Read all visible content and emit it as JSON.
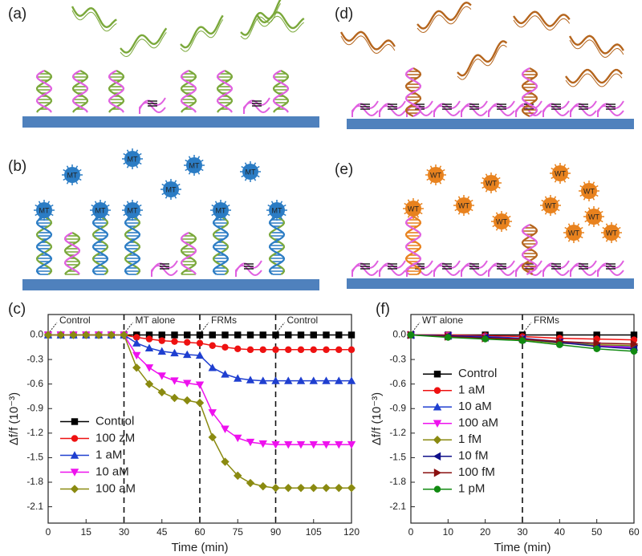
{
  "schematics": [
    {
      "label": "(a)"
    },
    {
      "label": "(b)",
      "particle": "MT"
    },
    {
      "label": "(d)"
    },
    {
      "label": "(e)",
      "particle": "WT"
    }
  ],
  "chart_data": [
    {
      "type": "line",
      "panel_label": "(c)",
      "x_label": "Time (min)",
      "y_label": "Δf/f (10⁻³)",
      "xlim": [
        0,
        120
      ],
      "xticks": [
        0,
        15,
        30,
        45,
        60,
        75,
        90,
        105,
        120
      ],
      "ylim": [
        -2.3,
        0.25
      ],
      "yticks": [
        {
          "value": 0,
          "label": "0.0"
        },
        -0.3,
        -0.6,
        -0.9,
        -1.2,
        -1.5,
        -1.8,
        -2.1
      ],
      "vlines": [
        30,
        60,
        90
      ],
      "legend": "lower left",
      "annotations": [
        {
          "text": "Control",
          "x": 0
        },
        {
          "text": "MT alone",
          "x": 30
        },
        {
          "text": "FRMs",
          "x": 60
        },
        {
          "text": "Control",
          "x": 90
        }
      ],
      "x": [
        0,
        5,
        10,
        15,
        20,
        25,
        30,
        35,
        40,
        45,
        50,
        55,
        60,
        65,
        70,
        75,
        80,
        85,
        90,
        95,
        100,
        105,
        110,
        115,
        120
      ],
      "series": [
        {
          "name": "Control",
          "color": "#000000",
          "marker": "square",
          "values": [
            0,
            0,
            0,
            0,
            0,
            0,
            0,
            0,
            0,
            0,
            0,
            0,
            0,
            0,
            0,
            0,
            0,
            0,
            0,
            0,
            0,
            0,
            0,
            0,
            0
          ]
        },
        {
          "name": "100 zM",
          "color": "#ee1111",
          "marker": "circle",
          "values": [
            0,
            0,
            0,
            0,
            0,
            0,
            0,
            -0.03,
            -0.05,
            -0.07,
            -0.08,
            -0.09,
            -0.1,
            -0.13,
            -0.15,
            -0.17,
            -0.18,
            -0.18,
            -0.18,
            -0.18,
            -0.18,
            -0.18,
            -0.18,
            -0.18,
            -0.18
          ]
        },
        {
          "name": "1 aM",
          "color": "#1f3fd0",
          "marker": "triangle-up",
          "values": [
            0,
            0,
            0,
            0,
            0,
            0,
            0,
            -0.1,
            -0.16,
            -0.2,
            -0.22,
            -0.24,
            -0.25,
            -0.4,
            -0.48,
            -0.53,
            -0.55,
            -0.56,
            -0.56,
            -0.56,
            -0.56,
            -0.56,
            -0.56,
            -0.56,
            -0.56
          ]
        },
        {
          "name": "10 aM",
          "color": "#ee11ee",
          "marker": "triangle-down",
          "values": [
            0,
            0,
            0,
            0,
            0,
            0,
            0,
            -0.25,
            -0.4,
            -0.5,
            -0.56,
            -0.59,
            -0.61,
            -0.95,
            -1.15,
            -1.26,
            -1.31,
            -1.33,
            -1.34,
            -1.34,
            -1.34,
            -1.34,
            -1.34,
            -1.34,
            -1.34
          ]
        },
        {
          "name": "100 aM",
          "color": "#8a8a10",
          "marker": "diamond",
          "values": [
            0,
            0,
            0,
            0,
            0,
            0,
            0,
            -0.4,
            -0.6,
            -0.7,
            -0.77,
            -0.8,
            -0.83,
            -1.25,
            -1.55,
            -1.72,
            -1.81,
            -1.85,
            -1.87,
            -1.87,
            -1.87,
            -1.87,
            -1.87,
            -1.87,
            -1.87
          ]
        }
      ]
    },
    {
      "type": "line",
      "panel_label": "(f)",
      "x_label": "Time (min)",
      "y_label": "Δf/f (10⁻³)",
      "xlim": [
        0,
        60
      ],
      "xticks": [
        0,
        10,
        20,
        30,
        40,
        50,
        60
      ],
      "ylim": [
        -2.3,
        0.25
      ],
      "yticks": [
        {
          "value": 0,
          "label": "0.0"
        },
        -0.3,
        -0.6,
        -0.9,
        -1.2,
        -1.5,
        -1.8,
        -2.1
      ],
      "vlines": [
        30
      ],
      "legend": "lower left",
      "annotations": [
        {
          "text": "WT alone",
          "x": 0
        },
        {
          "text": "FRMs",
          "x": 30
        }
      ],
      "x": [
        0,
        10,
        20,
        30,
        40,
        50,
        60
      ],
      "series": [
        {
          "name": "Control",
          "color": "#000000",
          "marker": "square",
          "values": [
            0,
            0,
            0,
            0,
            0,
            0,
            0
          ]
        },
        {
          "name": "1 aM",
          "color": "#ee1111",
          "marker": "circle",
          "values": [
            0,
            0,
            -0.01,
            -0.02,
            -0.04,
            -0.05,
            -0.06
          ]
        },
        {
          "name": "10 aM",
          "color": "#1f3fd0",
          "marker": "triangle-up",
          "values": [
            0,
            -0.01,
            -0.02,
            -0.04,
            -0.08,
            -0.12,
            -0.15
          ]
        },
        {
          "name": "100 aM",
          "color": "#ee11ee",
          "marker": "triangle-down",
          "values": [
            0,
            -0.01,
            -0.03,
            -0.05,
            -0.09,
            -0.13,
            -0.16
          ]
        },
        {
          "name": "1 fM",
          "color": "#8a8a10",
          "marker": "diamond",
          "values": [
            0,
            -0.02,
            -0.04,
            -0.06,
            -0.1,
            -0.12,
            -0.13
          ]
        },
        {
          "name": "10 fM",
          "color": "#10108a",
          "marker": "triangle-left",
          "values": [
            0,
            -0.01,
            -0.03,
            -0.05,
            -0.09,
            -0.14,
            -0.17
          ]
        },
        {
          "name": "100 fM",
          "color": "#8a1010",
          "marker": "triangle-right",
          "values": [
            0,
            -0.02,
            -0.04,
            -0.05,
            -0.08,
            -0.1,
            -0.11
          ]
        },
        {
          "name": "1 pM",
          "color": "#118a11",
          "marker": "circle",
          "values": [
            0,
            -0.03,
            -0.05,
            -0.07,
            -0.12,
            -0.17,
            -0.2
          ]
        }
      ]
    }
  ]
}
